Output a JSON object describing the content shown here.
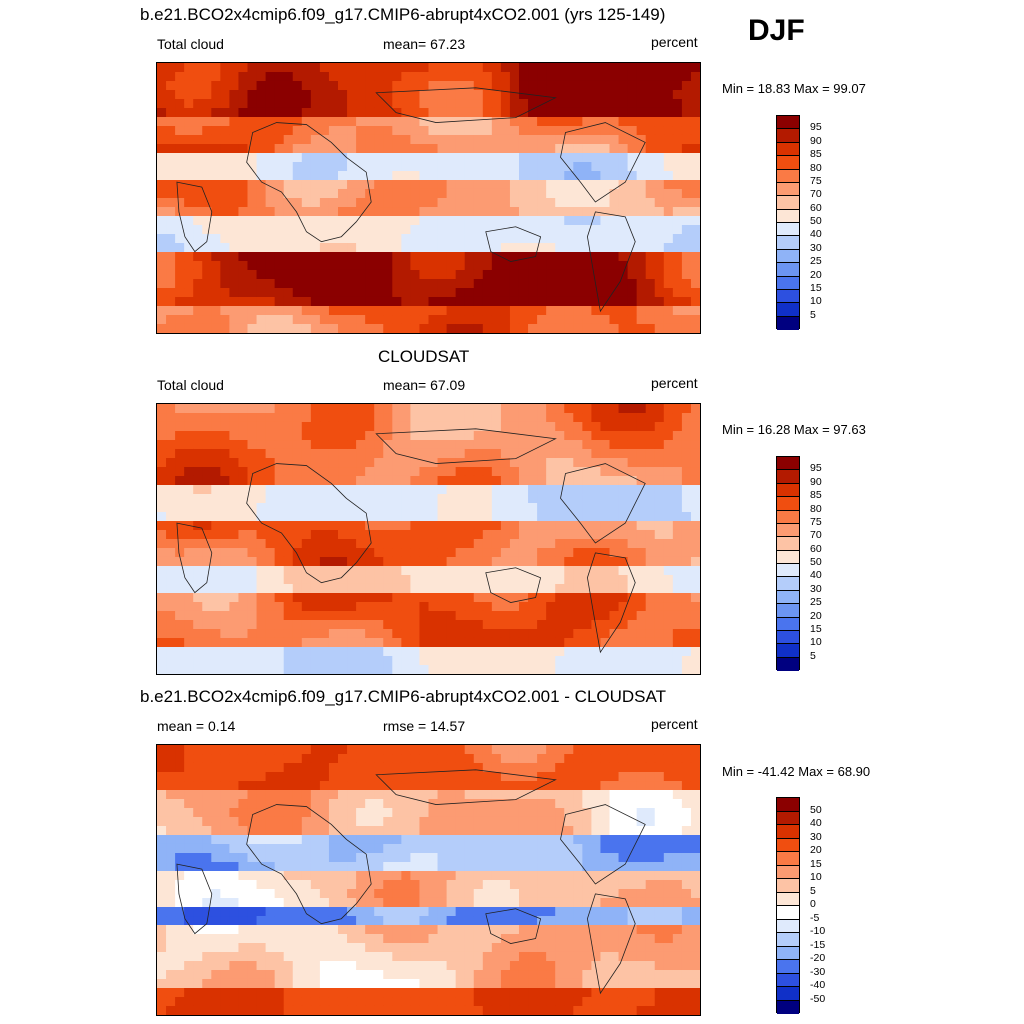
{
  "season": "DJF",
  "chart_data": [
    {
      "type": "heatmap",
      "id": "model",
      "title": "b.e21.BCO2x4cmip6.f09_g17.CMIP6-abrupt4xCO2.001 (yrs 125-149)",
      "left_label": "Total cloud",
      "center_label": "mean=  67.23",
      "units": "percent",
      "minmax": "Min =  18.83 Max =  99.07",
      "stats": {
        "mean": 67.23,
        "min": 18.83,
        "max": 99.07
      },
      "levels": [
        "95",
        "90",
        "85",
        "80",
        "75",
        "70",
        "60",
        "50",
        "40",
        "30",
        "25",
        "20",
        "15",
        "10",
        "5"
      ],
      "colors": [
        "#8b0000",
        "#b31a00",
        "#d93200",
        "#f04e10",
        "#fa7a45",
        "#fc9b72",
        "#fdc3a5",
        "#fde6d6",
        "#dfeafc",
        "#b4cdfa",
        "#8fb3f7",
        "#6c95f2",
        "#4a74ee",
        "#2d50e0",
        "#1030c8",
        "#000080"
      ]
    },
    {
      "type": "heatmap",
      "id": "obs",
      "title": "CLOUDSAT",
      "left_label": "Total cloud",
      "center_label": "mean=  67.09",
      "units": "percent",
      "minmax": "Min =  16.28 Max =  97.63",
      "stats": {
        "mean": 67.09,
        "min": 16.28,
        "max": 97.63
      },
      "levels": [
        "95",
        "90",
        "85",
        "80",
        "75",
        "70",
        "60",
        "50",
        "40",
        "30",
        "25",
        "20",
        "15",
        "10",
        "5"
      ],
      "colors": [
        "#8b0000",
        "#b31a00",
        "#d93200",
        "#f04e10",
        "#fa7a45",
        "#fc9b72",
        "#fdc3a5",
        "#fde6d6",
        "#dfeafc",
        "#b4cdfa",
        "#8fb3f7",
        "#6c95f2",
        "#4a74ee",
        "#2d50e0",
        "#1030c8",
        "#000080"
      ]
    },
    {
      "type": "heatmap",
      "id": "diff",
      "title": "b.e21.BCO2x4cmip6.f09_g17.CMIP6-abrupt4xCO2.001 - CLOUDSAT",
      "left_label": "mean =   0.14",
      "center_label": "rmse =  14.57",
      "units": "percent",
      "minmax": "Min = -41.42 Max =  68.90",
      "stats": {
        "mean": 0.14,
        "rmse": 14.57,
        "min": -41.42,
        "max": 68.9
      },
      "levels": [
        "50",
        "40",
        "30",
        "20",
        "15",
        "10",
        "5",
        "0",
        "-5",
        "-10",
        "-15",
        "-20",
        "-30",
        "-40",
        "-50"
      ],
      "colors": [
        "#8b0000",
        "#b31a00",
        "#d93200",
        "#f04e10",
        "#fa7a45",
        "#fc9b72",
        "#fdc3a5",
        "#fde6d6",
        "#ffffff",
        "#dfeafc",
        "#b4cdfa",
        "#8fb3f7",
        "#4a74ee",
        "#2d50e0",
        "#1030c8",
        "#000080"
      ]
    }
  ]
}
